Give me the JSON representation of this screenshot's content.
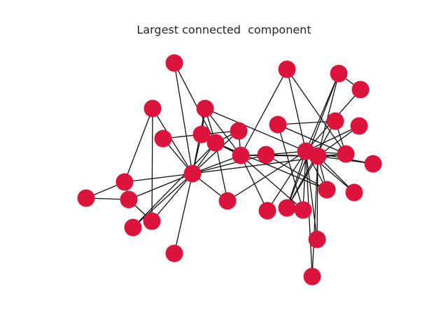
{
  "title": "Largest connected  component",
  "graph": {
    "node_color": "#dc143c",
    "edge_color": "#111111",
    "node_count": 34,
    "edges": [
      [
        0,
        1
      ],
      [
        0,
        2
      ],
      [
        0,
        3
      ],
      [
        0,
        4
      ],
      [
        0,
        5
      ],
      [
        0,
        6
      ],
      [
        0,
        7
      ],
      [
        0,
        8
      ],
      [
        0,
        10
      ],
      [
        0,
        11
      ],
      [
        0,
        12
      ],
      [
        0,
        13
      ],
      [
        0,
        17
      ],
      [
        0,
        19
      ],
      [
        0,
        21
      ],
      [
        0,
        31
      ],
      [
        1,
        2
      ],
      [
        1,
        3
      ],
      [
        1,
        7
      ],
      [
        1,
        13
      ],
      [
        1,
        17
      ],
      [
        1,
        19
      ],
      [
        1,
        21
      ],
      [
        1,
        30
      ],
      [
        2,
        3
      ],
      [
        2,
        7
      ],
      [
        2,
        8
      ],
      [
        2,
        9
      ],
      [
        2,
        13
      ],
      [
        2,
        27
      ],
      [
        2,
        28
      ],
      [
        2,
        32
      ],
      [
        3,
        7
      ],
      [
        3,
        12
      ],
      [
        3,
        13
      ],
      [
        4,
        6
      ],
      [
        4,
        10
      ],
      [
        5,
        6
      ],
      [
        5,
        10
      ],
      [
        5,
        16
      ],
      [
        6,
        16
      ],
      [
        8,
        30
      ],
      [
        8,
        32
      ],
      [
        8,
        33
      ],
      [
        9,
        33
      ],
      [
        13,
        33
      ],
      [
        14,
        32
      ],
      [
        14,
        33
      ],
      [
        15,
        32
      ],
      [
        15,
        33
      ],
      [
        18,
        32
      ],
      [
        18,
        33
      ],
      [
        19,
        33
      ],
      [
        20,
        32
      ],
      [
        20,
        33
      ],
      [
        22,
        32
      ],
      [
        22,
        33
      ],
      [
        23,
        25
      ],
      [
        23,
        27
      ],
      [
        23,
        29
      ],
      [
        23,
        32
      ],
      [
        23,
        33
      ],
      [
        24,
        25
      ],
      [
        24,
        27
      ],
      [
        24,
        31
      ],
      [
        25,
        31
      ],
      [
        26,
        29
      ],
      [
        26,
        33
      ],
      [
        27,
        33
      ],
      [
        28,
        31
      ],
      [
        28,
        33
      ],
      [
        29,
        32
      ],
      [
        29,
        33
      ],
      [
        30,
        32
      ],
      [
        30,
        33
      ],
      [
        31,
        32
      ],
      [
        31,
        33
      ],
      [
        32,
        33
      ]
    ]
  }
}
